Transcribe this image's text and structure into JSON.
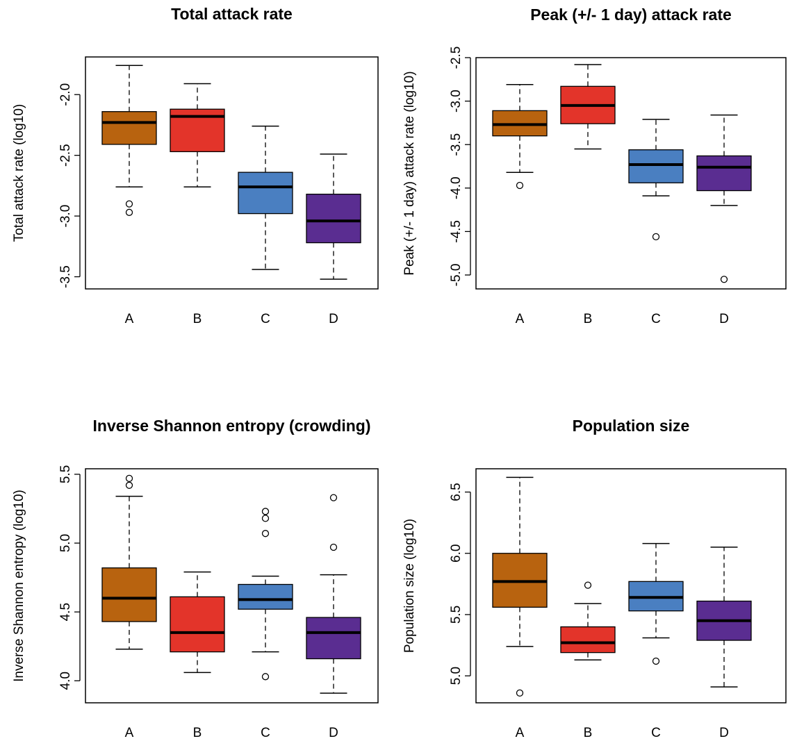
{
  "chart_data": [
    {
      "type": "box",
      "title": "Total attack rate",
      "y_label": "Total attack rate (log10)",
      "ylim": [
        -3.6,
        -1.69
      ],
      "yticks": [
        {
          "value": -2.0,
          "label": "-2.0"
        },
        -2.5,
        {
          "value": -3.0,
          "label": "-3.0"
        },
        -3.5
      ],
      "boxes": [
        {
          "name": "A",
          "color": "#b8630f",
          "whisker_low": -2.76,
          "q1": -2.41,
          "median": -2.23,
          "q3": -2.14,
          "whisker_high": -1.76,
          "outliers": [
            -2.9,
            -2.97
          ]
        },
        {
          "name": "B",
          "color": "#e3342a",
          "whisker_low": -2.76,
          "q1": -2.47,
          "median": -2.18,
          "q3": -2.12,
          "whisker_high": -1.91,
          "outliers": []
        },
        {
          "name": "C",
          "color": "#4a7fc1",
          "whisker_low": -3.44,
          "q1": -2.98,
          "median": -2.76,
          "q3": -2.64,
          "whisker_high": -2.26,
          "outliers": []
        },
        {
          "name": "D",
          "color": "#5a2d91",
          "whisker_low": -3.52,
          "q1": -3.22,
          "median": -3.04,
          "q3": -2.82,
          "whisker_high": -2.49,
          "outliers": []
        }
      ]
    },
    {
      "type": "box",
      "title": "Peak (+/- 1 day) attack rate",
      "y_label": "Peak (+/- 1 day) attack rate (log10)",
      "ylim": [
        -5.16,
        -2.5
      ],
      "yticks": [
        -2.5,
        {
          "value": -3.0,
          "label": "-3.0"
        },
        -3.5,
        {
          "value": -4.0,
          "label": "-4.0"
        },
        -4.5,
        {
          "value": -5.0,
          "label": "-5.0"
        }
      ],
      "boxes": [
        {
          "name": "A",
          "color": "#b8630f",
          "whisker_low": -3.82,
          "q1": -3.4,
          "median": -3.27,
          "q3": -3.11,
          "whisker_high": -2.81,
          "outliers": [
            -3.97
          ]
        },
        {
          "name": "B",
          "color": "#e3342a",
          "whisker_low": -3.55,
          "q1": -3.26,
          "median": -3.05,
          "q3": -2.83,
          "whisker_high": -2.58,
          "outliers": []
        },
        {
          "name": "C",
          "color": "#4a7fc1",
          "whisker_low": -4.09,
          "q1": -3.94,
          "median": -3.73,
          "q3": -3.56,
          "whisker_high": -3.21,
          "outliers": [
            -4.56
          ]
        },
        {
          "name": "D",
          "color": "#5a2d91",
          "whisker_low": -4.2,
          "q1": -4.03,
          "median": -3.76,
          "q3": -3.63,
          "whisker_high": -3.16,
          "outliers": [
            -5.05
          ]
        }
      ]
    },
    {
      "type": "box",
      "title": "Inverse Shannon entropy (crowding)",
      "y_label": "Inverse Shannon entropy (log10)",
      "ylim": [
        3.84,
        5.54
      ],
      "yticks": [
        {
          "value": 4.0,
          "label": "4.0"
        },
        4.5,
        {
          "value": 5.0,
          "label": "5.0"
        },
        5.5
      ],
      "boxes": [
        {
          "name": "A",
          "color": "#b8630f",
          "whisker_low": 4.23,
          "q1": 4.43,
          "median": 4.6,
          "q3": 4.82,
          "whisker_high": 5.34,
          "outliers": [
            5.47,
            5.42
          ]
        },
        {
          "name": "B",
          "color": "#e3342a",
          "whisker_low": 4.06,
          "q1": 4.21,
          "median": 4.35,
          "q3": 4.61,
          "whisker_high": 4.79,
          "outliers": []
        },
        {
          "name": "C",
          "color": "#4a7fc1",
          "whisker_low": 4.21,
          "q1": 4.52,
          "median": 4.59,
          "q3": 4.7,
          "whisker_high": 4.76,
          "outliers": [
            5.23,
            5.18,
            5.07,
            4.03
          ]
        },
        {
          "name": "D",
          "color": "#5a2d91",
          "whisker_low": 3.91,
          "q1": 4.16,
          "median": 4.35,
          "q3": 4.46,
          "whisker_high": 4.77,
          "outliers": [
            5.33,
            4.97
          ]
        }
      ]
    },
    {
      "type": "box",
      "title": "Population size",
      "y_label": "Population size (log10)",
      "ylim": [
        4.78,
        6.69
      ],
      "yticks": [
        {
          "value": 5.0,
          "label": "5.0"
        },
        5.5,
        {
          "value": 6.0,
          "label": "6.0"
        },
        6.5
      ],
      "boxes": [
        {
          "name": "A",
          "color": "#b8630f",
          "whisker_low": 5.24,
          "q1": 5.56,
          "median": 5.77,
          "q3": 6.0,
          "whisker_high": 6.62,
          "outliers": [
            4.86
          ]
        },
        {
          "name": "B",
          "color": "#e3342a",
          "whisker_low": 5.13,
          "q1": 5.19,
          "median": 5.27,
          "q3": 5.4,
          "whisker_high": 5.59,
          "outliers": [
            5.74
          ]
        },
        {
          "name": "C",
          "color": "#4a7fc1",
          "whisker_low": 5.31,
          "q1": 5.53,
          "median": 5.64,
          "q3": 5.77,
          "whisker_high": 6.08,
          "outliers": [
            5.12
          ]
        },
        {
          "name": "D",
          "color": "#5a2d91",
          "whisker_low": 4.91,
          "q1": 5.29,
          "median": 5.45,
          "q3": 5.61,
          "whisker_high": 6.05,
          "outliers": []
        }
      ]
    }
  ]
}
